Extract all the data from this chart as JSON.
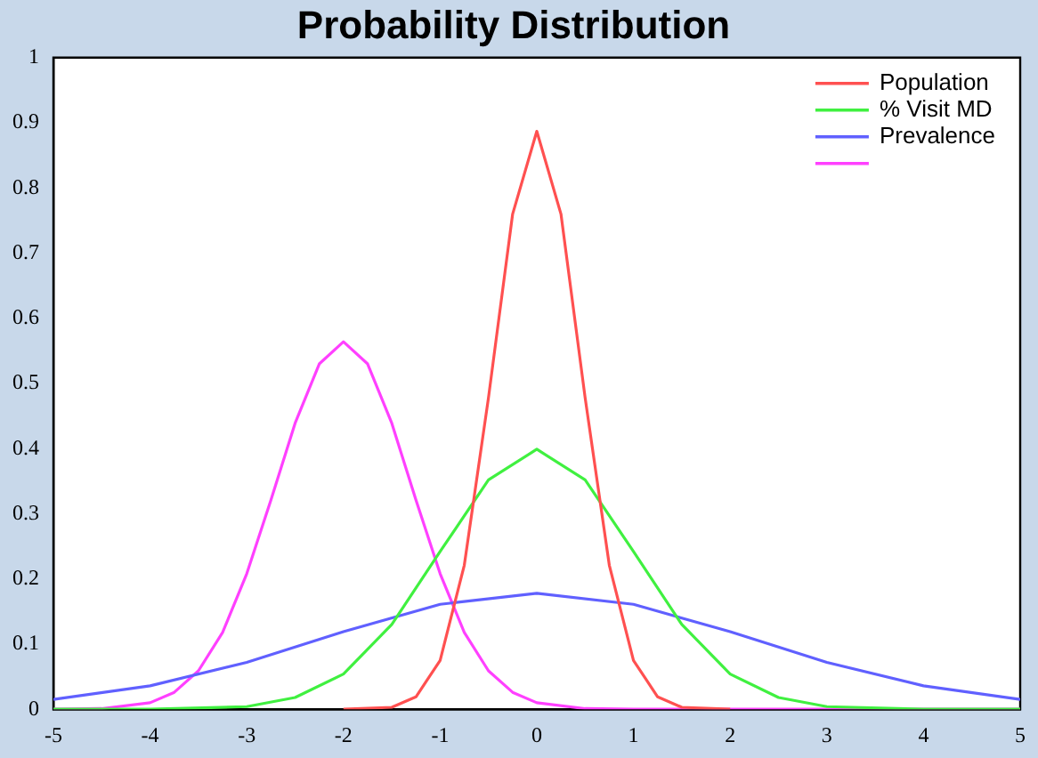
{
  "chart_data": {
    "type": "line",
    "title": "Probability Distribution",
    "marker": "none",
    "line_style": "solid",
    "legend": "top right",
    "grid": false,
    "xlim": [
      -5,
      5
    ],
    "xticks": [
      -5,
      -4,
      -3,
      -2,
      -1,
      0,
      1,
      2,
      3,
      4,
      5
    ],
    "ylim": [
      0,
      1
    ],
    "yticks": [
      0,
      0.1,
      0.2,
      0.3,
      0.4,
      0.5,
      0.6,
      0.7,
      0.8,
      0.9,
      1
    ],
    "series": [
      {
        "name": "Population",
        "color": "#ff5050",
        "x": [
          -2,
          -1.5,
          -1.25,
          -1,
          -0.75,
          -0.5,
          -0.25,
          0,
          0.25,
          0.5,
          0.75,
          1,
          1.25,
          1.5,
          2
        ],
        "values": [
          0,
          0.003,
          0.019,
          0.075,
          0.221,
          0.478,
          0.76,
          0.887,
          0.76,
          0.478,
          0.221,
          0.075,
          0.019,
          0.003,
          0
        ]
      },
      {
        "name": "% Visit MD",
        "color": "#40f040",
        "x": [
          -5,
          -4,
          -3,
          -2.5,
          -2,
          -1.5,
          -1,
          -0.5,
          0,
          0.5,
          1,
          1.5,
          2,
          2.5,
          3,
          4,
          5
        ],
        "values": [
          0,
          0,
          0.004,
          0.018,
          0.054,
          0.13,
          0.242,
          0.352,
          0.399,
          0.352,
          0.242,
          0.13,
          0.054,
          0.018,
          0.004,
          0,
          0
        ]
      },
      {
        "name": "Prevalence",
        "color": "#6060ff",
        "x": [
          -5,
          -4,
          -3,
          -2,
          -1,
          0,
          1,
          2,
          3,
          4,
          5
        ],
        "values": [
          0.015,
          0.036,
          0.072,
          0.119,
          0.161,
          0.178,
          0.161,
          0.119,
          0.072,
          0.036,
          0.015
        ]
      },
      {
        "color": "#ff40ff",
        "x": [
          -5,
          -4.5,
          -4,
          -3.75,
          -3.5,
          -3.25,
          -3,
          -2.75,
          -2.5,
          -2.25,
          -2,
          -1.75,
          -1.5,
          -1.25,
          -1,
          -0.75,
          -0.5,
          -0.25,
          0,
          0.5,
          1,
          5
        ],
        "values": [
          0,
          0.001,
          0.01,
          0.026,
          0.059,
          0.118,
          0.208,
          0.321,
          0.439,
          0.53,
          0.564,
          0.53,
          0.439,
          0.321,
          0.208,
          0.118,
          0.059,
          0.026,
          0.01,
          0.001,
          0,
          0
        ]
      }
    ]
  }
}
